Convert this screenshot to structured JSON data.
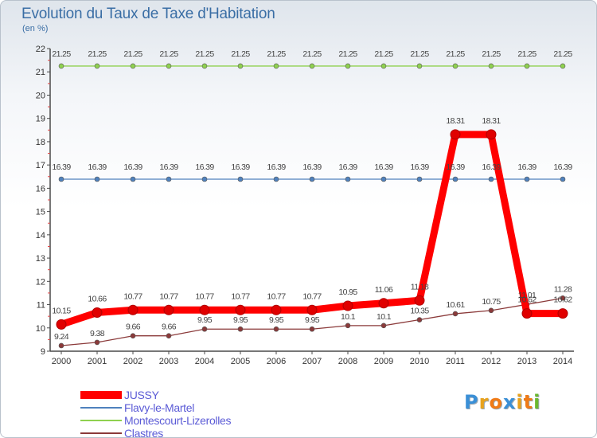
{
  "chart_data": {
    "type": "line",
    "title": "Evolution du Taux de Taxe d'Habitation",
    "subtitle": "(en %)",
    "xlabel": "",
    "ylabel": "",
    "categories": [
      "2000",
      "2001",
      "2002",
      "2003",
      "2004",
      "2005",
      "2006",
      "2007",
      "2008",
      "2009",
      "2010",
      "2011",
      "2012",
      "2013",
      "2014"
    ],
    "yticks": [
      9,
      10,
      11,
      12,
      13,
      14,
      15,
      16,
      17,
      18,
      19,
      20,
      21,
      22
    ],
    "ylim": [
      9,
      22
    ],
    "grid": false,
    "legend_position": "bottom-left",
    "series": [
      {
        "name": "JUSSY",
        "color": "#ff0000",
        "values": [
          10.15,
          10.66,
          10.77,
          10.77,
          10.77,
          10.77,
          10.77,
          10.77,
          10.95,
          11.06,
          11.18,
          18.31,
          18.31,
          10.62,
          10.62
        ],
        "labels": [
          "10.15",
          "10.66",
          "10.77",
          "10.77",
          "10.77",
          "10.77",
          "10.77",
          "10.77",
          "10.95",
          "11.06",
          "11.18",
          "18.31",
          "18.31",
          "10.62",
          "10.62"
        ]
      },
      {
        "name": "Flavy-le-Martel",
        "color": "#4f81bd",
        "values": [
          16.39,
          16.39,
          16.39,
          16.39,
          16.39,
          16.39,
          16.39,
          16.39,
          16.39,
          16.39,
          16.39,
          16.39,
          16.39,
          16.39,
          16.39
        ],
        "labels": [
          "16.39",
          "16.39",
          "16.39",
          "16.39",
          "16.39",
          "16.39",
          "16.39",
          "16.39",
          "16.39",
          "16.39",
          "16.39",
          "16.39",
          "16.39",
          "16.39",
          "16.39"
        ]
      },
      {
        "name": "Montescourt-Lizerolles",
        "color": "#8fd14f",
        "values": [
          21.25,
          21.25,
          21.25,
          21.25,
          21.25,
          21.25,
          21.25,
          21.25,
          21.25,
          21.25,
          21.25,
          21.25,
          21.25,
          21.25,
          21.25
        ],
        "labels": [
          "21.25",
          "21.25",
          "21.25",
          "21.25",
          "21.25",
          "21.25",
          "21.25",
          "21.25",
          "21.25",
          "21.25",
          "21.25",
          "21.25",
          "21.25",
          "21.25",
          "21.25"
        ]
      },
      {
        "name": "Clastres",
        "color": "#8b3a3a",
        "values": [
          9.24,
          9.38,
          9.66,
          9.66,
          9.95,
          9.95,
          9.95,
          9.95,
          10.1,
          10.1,
          10.35,
          10.61,
          10.75,
          11.01,
          11.28
        ],
        "labels": [
          "9.24",
          "9.38",
          "9.66",
          "9.66",
          "9.95",
          "9.95",
          "9.95",
          "9.95",
          "10.1",
          "10.1",
          "10.35",
          "10.61",
          "10.75",
          "11.01",
          "11.28"
        ]
      }
    ]
  },
  "legend": {
    "items": [
      {
        "label": "JUSSY",
        "color": "#ff0000"
      },
      {
        "label": "Flavy-le-Martel",
        "color": "#4f81bd"
      },
      {
        "label": "Montescourt-Lizerolles",
        "color": "#8fd14f"
      },
      {
        "label": "Clastres",
        "color": "#8b3a3a"
      }
    ]
  },
  "logo": {
    "letters": [
      "P",
      "r",
      "o",
      "x",
      "i",
      "t",
      "i"
    ],
    "colors": [
      "#3a8fd6",
      "#e8a21c",
      "#f07a16",
      "#3a8fd6",
      "#e8a21c",
      "#f07a16",
      "#6bb82f"
    ]
  }
}
